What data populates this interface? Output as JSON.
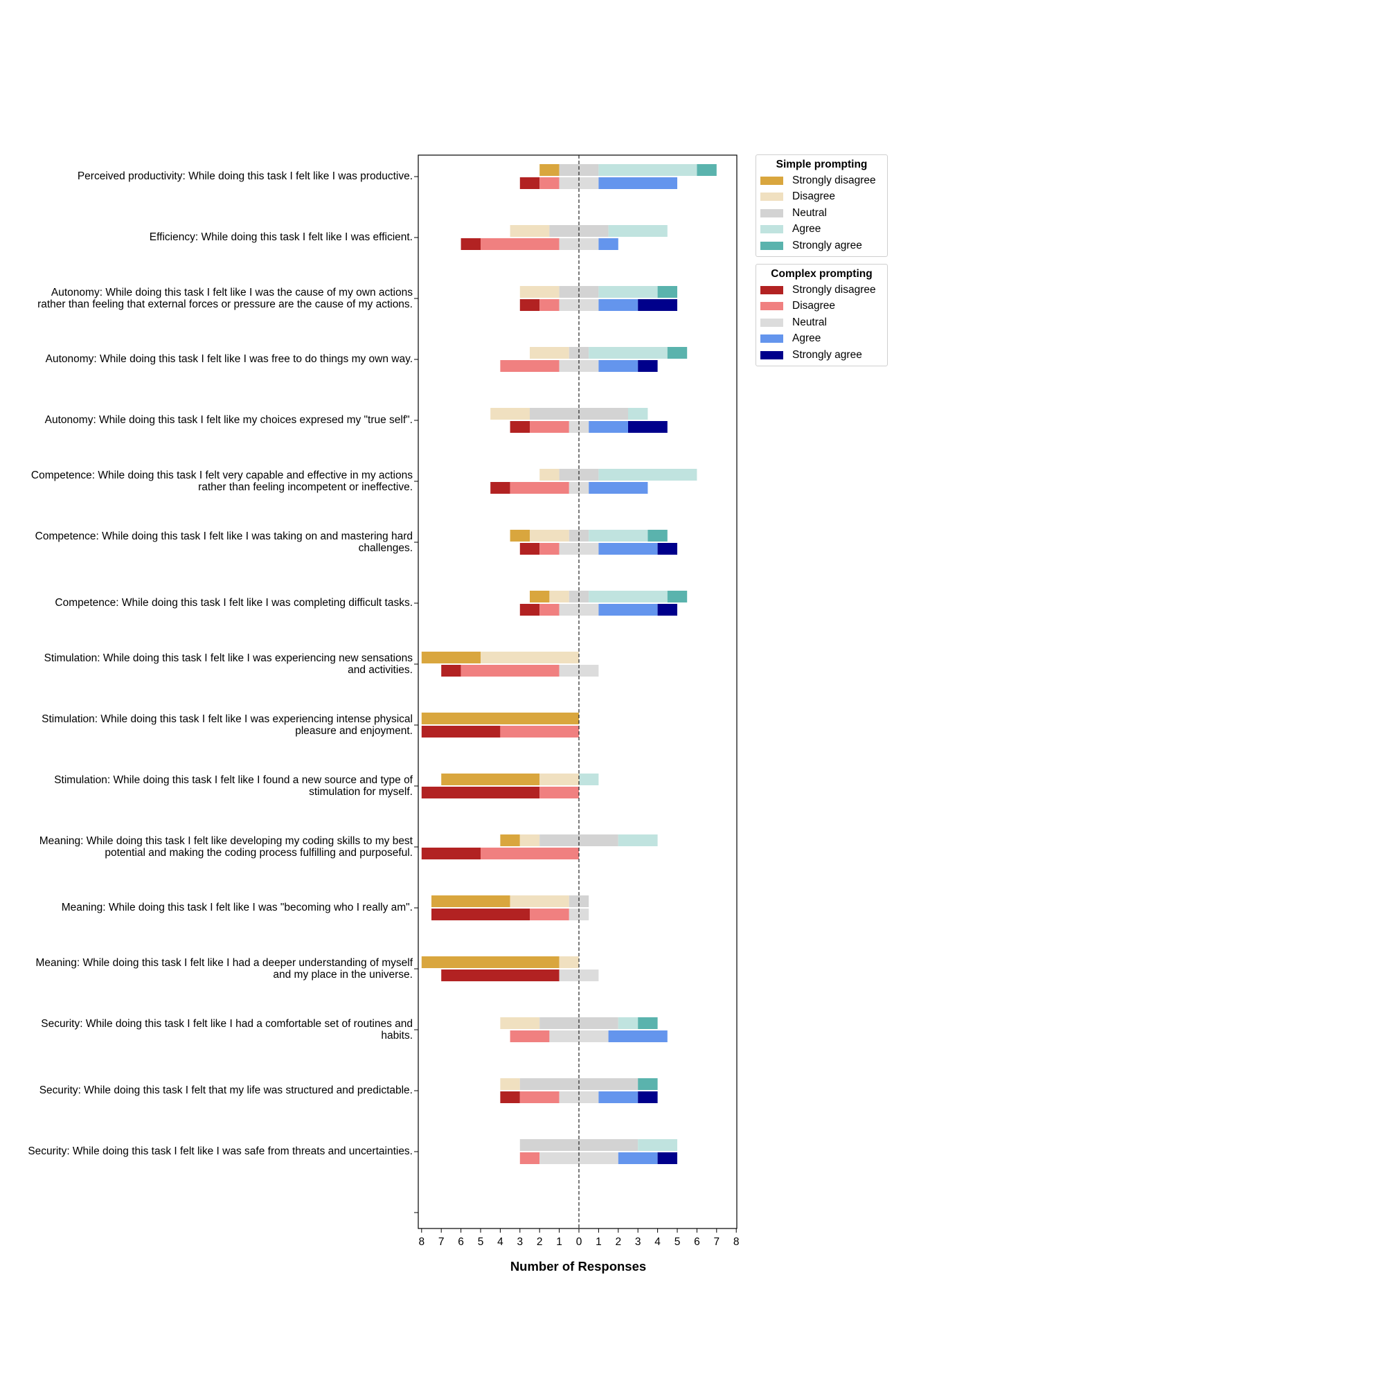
{
  "chart_data": {
    "type": "bar",
    "orientation": "horizontal-diverging",
    "xlabel": "Number of Responses",
    "xlim": [
      -8,
      8
    ],
    "xtick_labels": [
      "8",
      "7",
      "6",
      "5",
      "4",
      "3",
      "2",
      "1",
      "0",
      "1",
      "2",
      "3",
      "4",
      "5",
      "6",
      "7",
      "8"
    ],
    "levels": [
      "Strongly disagree",
      "Disagree",
      "Neutral",
      "Agree",
      "Strongly agree"
    ],
    "categories": [
      "Perceived productivity: While doing this task I felt like I was productive.",
      "Efficiency: While doing this task I felt like I was efficient.",
      "Autonomy: While doing this task I felt like I was the cause of my own actions rather than feeling that external forces or pressure are the cause of my actions.",
      "Autonomy: While doing this task I felt like I was free to do things my own way.",
      "Autonomy: While doing this task I felt like my choices expresed my \"true self\".",
      "Competence: While doing this task I felt very capable and effective in my actions rather than feeling incompetent or ineffective.",
      "Competence: While doing this task I felt like I was taking on and mastering hard challenges.",
      "Competence: While doing this task I felt like I was completing difficult tasks.",
      "Stimulation: While doing this task I felt like I was experiencing new sensations and activities.",
      "Stimulation: While doing this task I felt like I was experiencing intense physical pleasure and enjoyment.",
      "Stimulation: While doing this task I felt like I found a new source and type of stimulation for myself.",
      "Meaning: While doing this task I felt like developing my coding skills to my best potential and making the coding process fulfilling and purposeful.",
      "Meaning: While doing this task I felt like I was \"becoming who I really am\".",
      "Meaning: While doing this task I felt like I had a deeper understanding of myself and my place in the universe.",
      "Security: While doing this task I felt like I had a comfortable set of routines and habits.",
      "Security: While doing this task I felt that my life was structured and predictable.",
      "Security: While doing this task I felt like I was safe from threats and uncertainties."
    ],
    "series": [
      {
        "name": "Simple prompting",
        "colors": [
          "#d9a63e",
          "#f0e0c0",
          "#d3d3d3",
          "#c0e3df",
          "#5ab3ad"
        ],
        "counts": [
          [
            1,
            0,
            2,
            5,
            1
          ],
          [
            0,
            2,
            3,
            3,
            0
          ],
          [
            0,
            2,
            2,
            3,
            1
          ],
          [
            0,
            2,
            1,
            4,
            1
          ],
          [
            0,
            2,
            5,
            1,
            0
          ],
          [
            0,
            1,
            2,
            5,
            0
          ],
          [
            1,
            2,
            1,
            3,
            1
          ],
          [
            1,
            1,
            1,
            4,
            1
          ],
          [
            3,
            5,
            0,
            0,
            0
          ],
          [
            8,
            0,
            0,
            0,
            0
          ],
          [
            5,
            2,
            0,
            1,
            0
          ],
          [
            1,
            1,
            4,
            2,
            0
          ],
          [
            4,
            3,
            1,
            0,
            0
          ],
          [
            7,
            1,
            0,
            0,
            0
          ],
          [
            0,
            2,
            4,
            1,
            1
          ],
          [
            0,
            1,
            6,
            0,
            1
          ],
          [
            0,
            0,
            6,
            2,
            0
          ]
        ]
      },
      {
        "name": "Complex prompting",
        "colors": [
          "#b22222",
          "#f08080",
          "#dcdcdc",
          "#6495ed",
          "#00008b"
        ],
        "counts": [
          [
            1,
            1,
            2,
            4,
            0
          ],
          [
            1,
            4,
            2,
            1,
            0
          ],
          [
            1,
            1,
            2,
            2,
            2
          ],
          [
            0,
            3,
            2,
            2,
            1
          ],
          [
            1,
            2,
            1,
            2,
            2
          ],
          [
            1,
            3,
            1,
            3,
            0
          ],
          [
            1,
            1,
            2,
            3,
            1
          ],
          [
            1,
            1,
            2,
            3,
            1
          ],
          [
            1,
            5,
            2,
            0,
            0
          ],
          [
            4,
            4,
            0,
            0,
            0
          ],
          [
            6,
            2,
            0,
            0,
            0
          ],
          [
            3,
            5,
            0,
            0,
            0
          ],
          [
            5,
            2,
            1,
            0,
            0
          ],
          [
            6,
            0,
            2,
            0,
            0
          ],
          [
            0,
            2,
            3,
            3,
            0
          ],
          [
            1,
            2,
            2,
            2,
            1
          ],
          [
            0,
            1,
            4,
            2,
            1
          ]
        ]
      }
    ]
  },
  "legend": {
    "simple_title": "Simple prompting",
    "complex_title": "Complex prompting",
    "labels": [
      "Strongly disagree",
      "Disagree",
      "Neutral",
      "Agree",
      "Strongly agree"
    ]
  }
}
